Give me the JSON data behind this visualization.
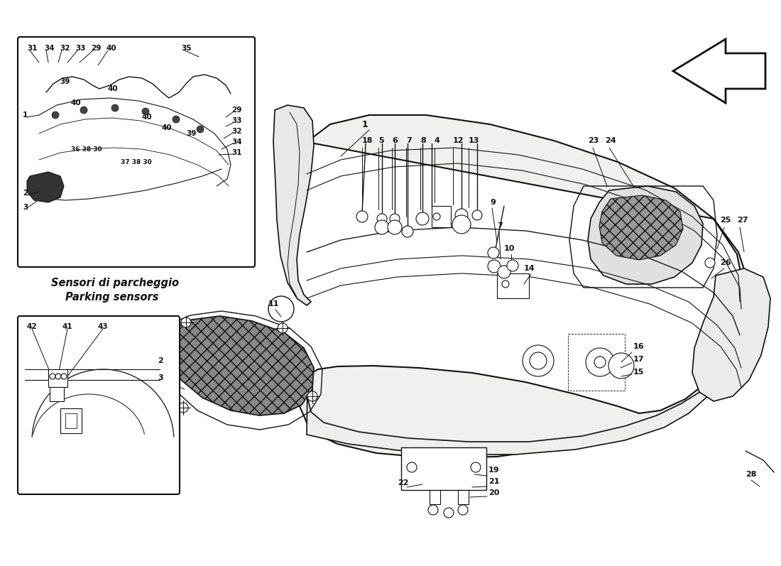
{
  "bg_color": "#f5f5f0",
  "line_color": "#111111",
  "fig_width": 11.0,
  "fig_height": 7.97,
  "inset1_label_it": "Sensori di parcheggio",
  "inset1_label_en": "Parking sensors"
}
